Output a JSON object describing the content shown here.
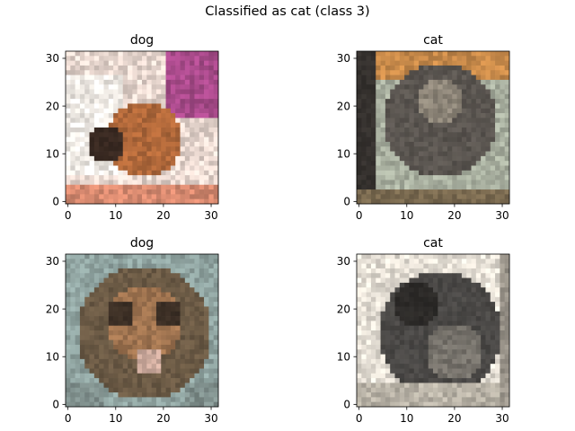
{
  "figure": {
    "suptitle": "Classified as cat (class 3)"
  },
  "chart_data": [
    {
      "type": "image",
      "title": "dog",
      "image_subject": "dog",
      "xlim": [
        -0.5,
        31.5
      ],
      "ylim": [
        31.5,
        -0.5
      ],
      "xticks": [
        0,
        10,
        20,
        30
      ],
      "yticks": [
        0,
        10,
        20,
        30
      ],
      "palette": {
        "bg": "#e8d7cf",
        "a": "#f4efe9",
        "b": "#3a2a22",
        "c": "#b0683a",
        "d": "#a84a8a",
        "e": "#d88a70"
      }
    },
    {
      "type": "image",
      "title": "cat",
      "image_subject": "cat",
      "xlim": [
        -0.5,
        31.5
      ],
      "ylim": [
        31.5,
        -0.5
      ],
      "xticks": [
        0,
        10,
        20,
        30
      ],
      "yticks": [
        0,
        10,
        20,
        30
      ],
      "palette": {
        "bg": "#c88a4a",
        "a": "#5a5550",
        "b": "#35312e",
        "c": "#8e8679",
        "d": "#a9b0a0",
        "e": "#7a6a50"
      }
    },
    {
      "type": "image",
      "title": "dog",
      "image_subject": "cat",
      "xlim": [
        -0.5,
        31.5
      ],
      "ylim": [
        31.5,
        -0.5
      ],
      "xticks": [
        0,
        10,
        20,
        30
      ],
      "yticks": [
        0,
        10,
        20,
        30
      ],
      "palette": {
        "bg": "#8fa3a0",
        "a": "#6b5a45",
        "b": "#3c2f25",
        "c": "#a07450",
        "d": "#c9a79a",
        "e": "#7f8f8c"
      }
    },
    {
      "type": "image",
      "title": "cat",
      "image_subject": "cat",
      "xlim": [
        -0.5,
        31.5
      ],
      "ylim": [
        31.5,
        -0.5
      ],
      "xticks": [
        0,
        10,
        20,
        30
      ],
      "yticks": [
        0,
        10,
        20,
        30
      ],
      "palette": {
        "bg": "#e6e0d6",
        "a": "#4a4846",
        "b": "#2c2a28",
        "c": "#77736c",
        "d": "#b8b2a6",
        "e": "#9a948a"
      }
    }
  ]
}
